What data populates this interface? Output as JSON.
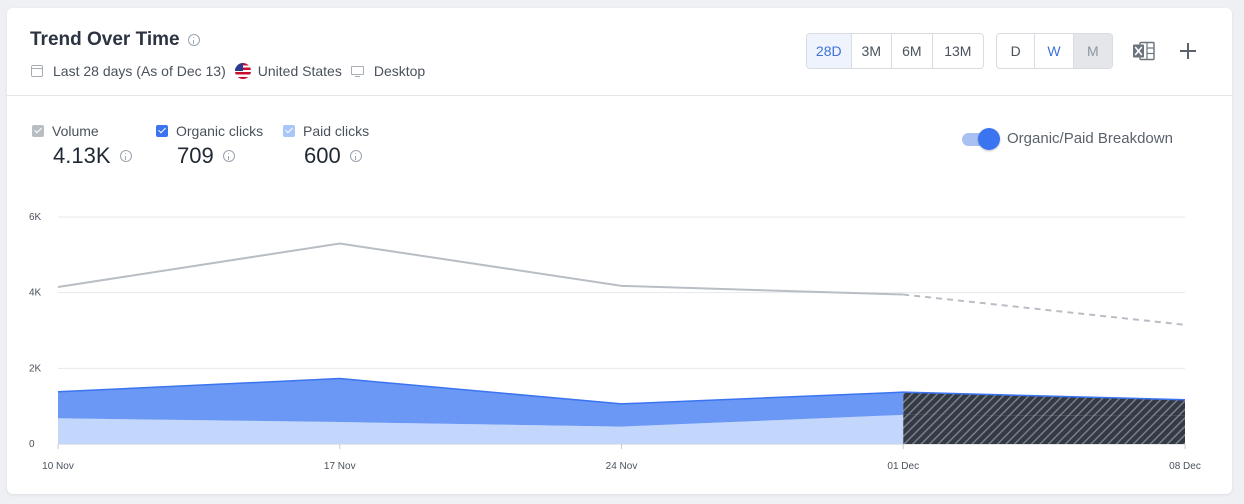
{
  "header": {
    "title": "Trend Over Time",
    "date_range": "Last 28 days (As of Dec 13)",
    "country": "United States",
    "device": "Desktop"
  },
  "range_buttons": [
    "28D",
    "3M",
    "6M",
    "13M"
  ],
  "range_selected": "28D",
  "granularity_buttons": [
    "D",
    "W",
    "M"
  ],
  "granularity_selected": "W",
  "granularity_disabled": "M",
  "metrics": [
    {
      "label": "Volume",
      "value": "4.13K",
      "checked": true,
      "color": "#b9bec5"
    },
    {
      "label": "Organic clicks",
      "value": "709",
      "checked": true,
      "color": "#3b74f0"
    },
    {
      "label": "Paid clicks",
      "value": "600",
      "checked": true,
      "color": "#a9c6f8"
    }
  ],
  "breakdown_toggle": {
    "label": "Organic/Paid Breakdown",
    "on": true
  },
  "icons": [
    "info-icon",
    "calendar-icon",
    "us-flag-icon",
    "desktop-icon",
    "excel-export-icon",
    "plus-icon"
  ],
  "colors": {
    "accent": "#3f73d6",
    "volume_line": "#b9bec5",
    "organic_area": "#6a98f4",
    "paid_area": "#c3d6fb"
  },
  "chart_data": {
    "type": "area",
    "categories": [
      "10 Nov",
      "17 Nov",
      "24 Nov",
      "01 Dec",
      "08 Dec"
    ],
    "ylim": [
      0,
      6000
    ],
    "y_ticks": [
      0,
      2000,
      4000,
      6000
    ],
    "y_tick_labels": [
      "0",
      "2K",
      "4K",
      "6K"
    ],
    "grid": true,
    "partial_from_index": 3,
    "series": [
      {
        "name": "Volume",
        "type": "line",
        "values": [
          4150,
          5300,
          4180,
          3950,
          3150
        ]
      },
      {
        "name": "Organic clicks",
        "type": "stacked-area",
        "values": [
          700,
          1150,
          600,
          600,
          420
        ]
      },
      {
        "name": "Paid clicks",
        "type": "stacked-area",
        "values": [
          680,
          580,
          460,
          770,
          750
        ]
      }
    ]
  }
}
